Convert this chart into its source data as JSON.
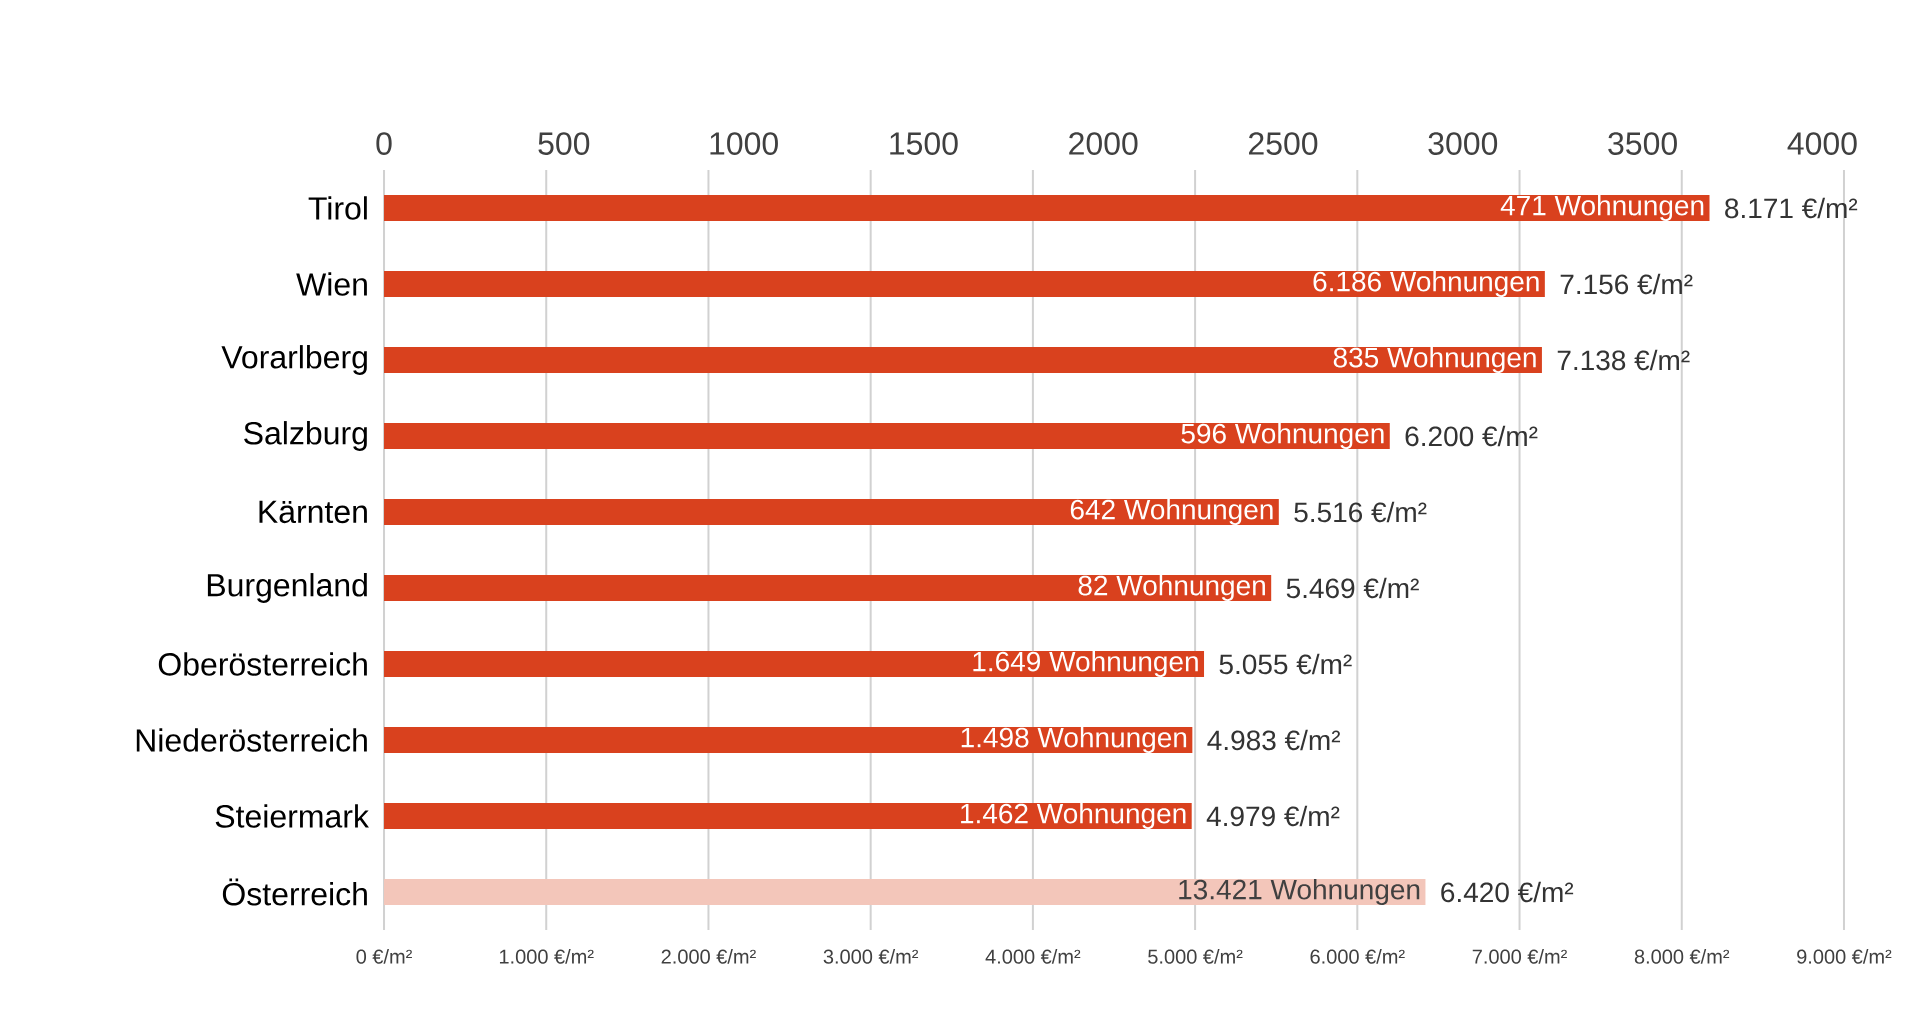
{
  "chart_data": {
    "type": "bar",
    "orientation": "horizontal",
    "categories": [
      "Tirol",
      "Wien",
      "Vorarlberg",
      "Salzburg",
      "Kärnten",
      "Burgenland",
      "Oberösterreich",
      "Niederösterreich",
      "Steiermark",
      "Österreich"
    ],
    "values": [
      8171,
      7156,
      7138,
      6200,
      5516,
      5469,
      5055,
      4983,
      4979,
      6420
    ],
    "colors": [
      "#d9411e",
      "#d9411e",
      "#d9411e",
      "#d9411e",
      "#d9411e",
      "#d9411e",
      "#d9411e",
      "#d9411e",
      "#d9411e",
      "#f3c6ba"
    ],
    "value_labels": [
      "8.171 €/m²",
      "7.156 €/m²",
      "7.138 €/m²",
      "6.200 €/m²",
      "5.516 €/m²",
      "5.469 €/m²",
      "5.055 €/m²",
      "4.983 €/m²",
      "4.979 €/m²",
      "6.420 €/m²"
    ],
    "annotations": [
      {
        "text": "471 Wohnungen",
        "x": 8171,
        "y": "Tirol"
      },
      {
        "text": "6.186 Wohnungen",
        "x": 7156,
        "y": "Wien"
      },
      {
        "text": "835 Wohnungen",
        "x": 7138,
        "y": "Vorarlberg"
      },
      {
        "text": "596 Wohnungen",
        "x": 6200,
        "y": "Salzburg"
      },
      {
        "text": "642 Wohnungen",
        "x": 5516,
        "y": "Kärnten"
      },
      {
        "text": "82 Wohnungen",
        "x": 5469,
        "y": "Burgenland"
      },
      {
        "text": "1.649 Wohnungen",
        "x": 5055,
        "y": "Oberösterreich"
      },
      {
        "text": "1.498 Wohnungen",
        "x": 4983,
        "y": "Niederösterreich"
      },
      {
        "text": "1.462 Wohnungen",
        "x": 4979,
        "y": "Steiermark"
      },
      {
        "text": "13.421 Wohnungen",
        "x": 6420,
        "y": "Österreich"
      }
    ],
    "xlim": [
      0,
      9000
    ],
    "xticks": [
      {
        "value": 0,
        "label": "0 €/m²"
      },
      {
        "value": 1000,
        "label": "1.000 €/m²"
      },
      {
        "value": 2000,
        "label": "2.000 €/m²"
      },
      {
        "value": 3000,
        "label": "3.000 €/m²"
      },
      {
        "value": 4000,
        "label": "4.000 €/m²"
      },
      {
        "value": 5000,
        "label": "5.000 €/m²"
      },
      {
        "value": 6000,
        "label": "6.000 €/m²"
      },
      {
        "value": 7000,
        "label": "7.000 €/m²"
      },
      {
        "value": 8000,
        "label": "8.000 €/m²"
      },
      {
        "value": 9000,
        "label": "9.000 €/m²"
      }
    ],
    "x2lim": [
      0,
      4060
    ],
    "x2ticks": [
      0,
      500,
      1000,
      1500,
      2000,
      2500,
      3000,
      3500,
      4000
    ],
    "grid": "x"
  }
}
